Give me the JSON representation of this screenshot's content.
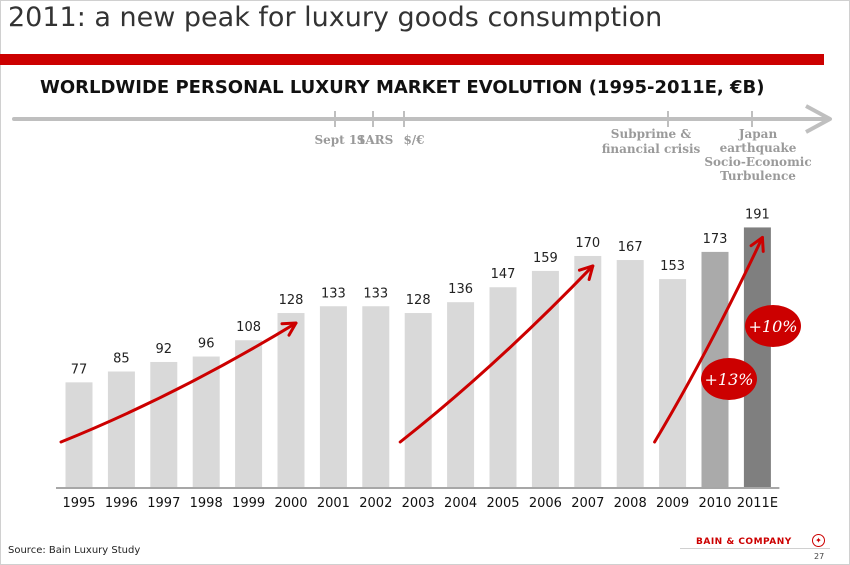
{
  "slide": {
    "title": "2011: a new peak for luxury goods consumption",
    "source": "Source: Bain Luxury Study",
    "brand": "BAIN & COMPANY",
    "page_number": "27"
  },
  "colors": {
    "accent": "#cc0000",
    "bar": "#d9d9d9",
    "bar_2010": "#aaaaaa",
    "bar_2011E": "#7f7f7f",
    "timeline": "#bfbfbf"
  },
  "timeline_events": [
    {
      "label": "Sept 11",
      "year": "2001"
    },
    {
      "label": "SARS",
      "year": "2003"
    },
    {
      "label": "$/€",
      "year": "2003"
    },
    {
      "label": "Subprime & financial crisis",
      "year": "2008"
    },
    {
      "label": "Japan earthquake Socio-Economic Turbulence",
      "year": "2011E"
    }
  ],
  "growth_badges": [
    {
      "label": "+13%",
      "year": "2010"
    },
    {
      "label": "+10%",
      "year": "2011E"
    }
  ],
  "chart_data": {
    "type": "bar",
    "title": "WORLDWIDE PERSONAL LUXURY MARKET EVOLUTION (1995-2011E, €B)",
    "categories": [
      "1995",
      "1996",
      "1997",
      "1998",
      "1999",
      "2000",
      "2001",
      "2002",
      "2003",
      "2004",
      "2005",
      "2006",
      "2007",
      "2008",
      "2009",
      "2010",
      "2011E"
    ],
    "values": [
      77,
      85,
      92,
      96,
      108,
      128,
      133,
      133,
      128,
      136,
      147,
      159,
      170,
      167,
      153,
      173,
      191
    ],
    "value_labels": [
      "77",
      "85",
      "92",
      "96",
      "108",
      "128",
      "133",
      "133",
      "128",
      "136",
      "147",
      "159",
      "170",
      "167",
      "153",
      "173",
      "191"
    ],
    "xlabel": "",
    "ylabel": "",
    "ylim": [
      0,
      195
    ],
    "grid": false,
    "trend_arrows": [
      [
        "1995",
        "2000"
      ],
      [
        "2003",
        "2007"
      ],
      [
        "2009",
        "2011E"
      ]
    ]
  }
}
